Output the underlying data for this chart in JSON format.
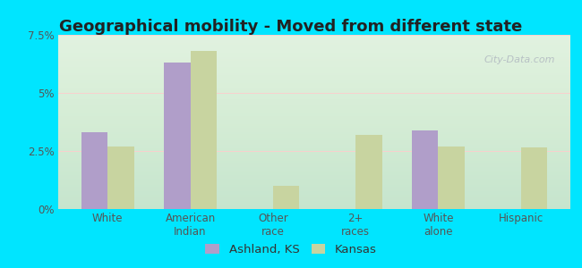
{
  "title": "Geographical mobility - Moved from different state",
  "categories": [
    "White",
    "American\nIndian",
    "Other\nrace",
    "2+\nraces",
    "White\nalone",
    "Hispanic"
  ],
  "ashland_values": [
    3.3,
    6.3,
    0.0,
    0.0,
    3.4,
    0.0
  ],
  "kansas_values": [
    2.7,
    6.8,
    1.0,
    3.2,
    2.7,
    2.65
  ],
  "ashland_color": "#b09ec9",
  "kansas_color": "#c8d4a0",
  "background_top": "#c8e8d8",
  "background_bottom": "#f0f8f0",
  "ylim": [
    0,
    7.5
  ],
  "yticks": [
    0,
    2.5,
    5.0,
    7.5
  ],
  "ytick_labels": [
    "0%",
    "2.5%",
    "5%",
    "7.5%"
  ],
  "legend_labels": [
    "Ashland, KS",
    "Kansas"
  ],
  "outer_bg": "#00e5ff",
  "bar_width": 0.32,
  "title_fontsize": 13,
  "tick_fontsize": 8.5,
  "legend_fontsize": 9.5,
  "watermark": "City-Data.com"
}
